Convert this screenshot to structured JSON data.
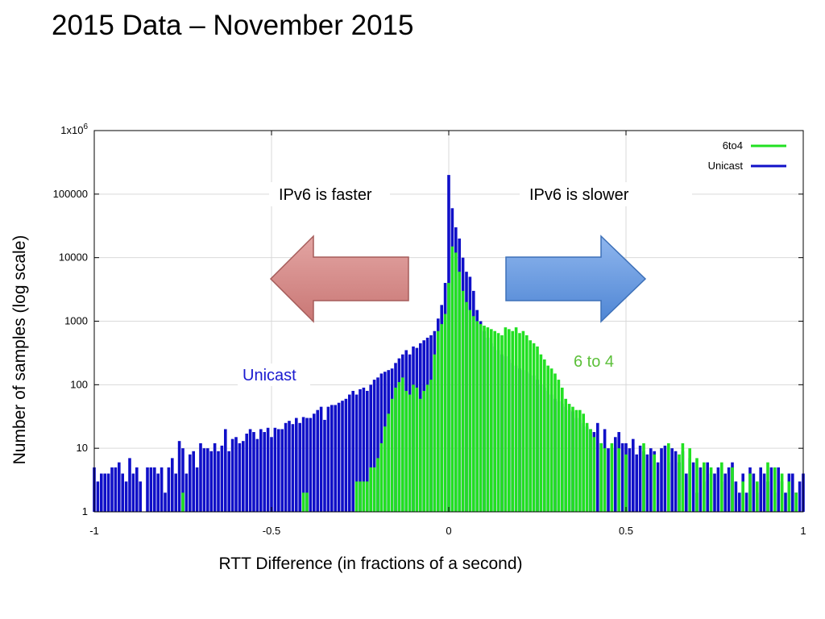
{
  "slide": {
    "title": "2015 Data – November 2015"
  },
  "colors": {
    "unicast": "#1010c8",
    "6to4": "#22e022",
    "grid": "#d9d9d9",
    "left_arrow": "#d48c8a",
    "right_arrow": "#6a9ee0"
  },
  "chart_data": {
    "type": "bar",
    "xlabel": "RTT Difference (in fractions of a second)",
    "ylabel": "Number of samples (log scale)",
    "xlim": [
      -1,
      1
    ],
    "ylim": [
      1,
      1000000
    ],
    "yscale": "log",
    "grid": true,
    "legend_placement": "top-right",
    "x_ticks": [
      "-1",
      "-0.5",
      "0",
      "0.5",
      "1"
    ],
    "y_ticks": [
      {
        "value": 1,
        "base": "1"
      },
      {
        "value": 10,
        "base": "10"
      },
      {
        "value": 100,
        "base": "100"
      },
      {
        "value": 1000,
        "base": "1000"
      },
      {
        "value": 10000,
        "base": "10000"
      },
      {
        "value": 100000,
        "base": "100000"
      },
      {
        "value": 1000000,
        "base": "1x10",
        "sup": "6"
      }
    ],
    "annotations": [
      {
        "text": "IPv6 is faster"
      },
      {
        "text": "IPv6 is slower"
      },
      {
        "text": "Unicast"
      },
      {
        "text": "6 to 4"
      }
    ],
    "series": [
      {
        "name": "6to4",
        "x_step": 0.01,
        "points": [
          [
            -0.75,
            2
          ],
          [
            -0.41,
            2
          ],
          [
            -0.4,
            2
          ],
          [
            -0.26,
            3
          ],
          [
            -0.25,
            3
          ],
          [
            -0.24,
            3
          ],
          [
            -0.23,
            3
          ],
          [
            -0.22,
            5
          ],
          [
            -0.21,
            5
          ],
          [
            -0.2,
            7
          ],
          [
            -0.19,
            12
          ],
          [
            -0.18,
            22
          ],
          [
            -0.17,
            35
          ],
          [
            -0.16,
            60
          ],
          [
            -0.15,
            90
          ],
          [
            -0.14,
            110
          ],
          [
            -0.13,
            130
          ],
          [
            -0.12,
            80
          ],
          [
            -0.11,
            70
          ],
          [
            -0.1,
            100
          ],
          [
            -0.09,
            90
          ],
          [
            -0.08,
            60
          ],
          [
            -0.07,
            80
          ],
          [
            -0.06,
            100
          ],
          [
            -0.05,
            120
          ],
          [
            -0.04,
            300
          ],
          [
            -0.03,
            700
          ],
          [
            -0.02,
            900
          ],
          [
            -0.01,
            1300
          ],
          [
            0.0,
            4000
          ],
          [
            0.01,
            15000
          ],
          [
            0.02,
            12000
          ],
          [
            0.03,
            6000
          ],
          [
            0.04,
            3000
          ],
          [
            0.05,
            2000
          ],
          [
            0.06,
            1500
          ],
          [
            0.07,
            1200
          ],
          [
            0.08,
            1000
          ],
          [
            0.09,
            900
          ],
          [
            0.1,
            850
          ],
          [
            0.11,
            800
          ],
          [
            0.12,
            750
          ],
          [
            0.13,
            700
          ],
          [
            0.14,
            650
          ],
          [
            0.15,
            600
          ],
          [
            0.16,
            800
          ],
          [
            0.17,
            750
          ],
          [
            0.18,
            700
          ],
          [
            0.19,
            800
          ],
          [
            0.2,
            650
          ],
          [
            0.21,
            700
          ],
          [
            0.22,
            600
          ],
          [
            0.23,
            500
          ],
          [
            0.24,
            450
          ],
          [
            0.25,
            400
          ],
          [
            0.26,
            300
          ],
          [
            0.27,
            250
          ],
          [
            0.28,
            200
          ],
          [
            0.29,
            180
          ],
          [
            0.3,
            150
          ],
          [
            0.31,
            120
          ],
          [
            0.32,
            90
          ],
          [
            0.33,
            60
          ],
          [
            0.34,
            50
          ],
          [
            0.35,
            45
          ],
          [
            0.36,
            40
          ],
          [
            0.37,
            40
          ],
          [
            0.38,
            35
          ],
          [
            0.39,
            25
          ],
          [
            0.4,
            20
          ],
          [
            0.41,
            15
          ],
          [
            0.43,
            12
          ],
          [
            0.44,
            10
          ],
          [
            0.46,
            12
          ],
          [
            0.48,
            10
          ],
          [
            0.5,
            8
          ],
          [
            0.55,
            12
          ],
          [
            0.58,
            8
          ],
          [
            0.62,
            12
          ],
          [
            0.65,
            8
          ],
          [
            0.66,
            12
          ],
          [
            0.68,
            10
          ],
          [
            0.7,
            7
          ],
          [
            0.72,
            6
          ],
          [
            0.74,
            5
          ],
          [
            0.77,
            6
          ],
          [
            0.8,
            5
          ],
          [
            0.83,
            3
          ],
          [
            0.85,
            4
          ],
          [
            0.87,
            3
          ],
          [
            0.9,
            6
          ],
          [
            0.92,
            5
          ],
          [
            0.94,
            4
          ],
          [
            0.96,
            3
          ],
          [
            0.98,
            2
          ]
        ]
      },
      {
        "name": "Unicast",
        "x_step": 0.01,
        "points": [
          [
            -1.0,
            5
          ],
          [
            -0.99,
            3
          ],
          [
            -0.98,
            4
          ],
          [
            -0.97,
            4
          ],
          [
            -0.96,
            4
          ],
          [
            -0.95,
            5
          ],
          [
            -0.94,
            5
          ],
          [
            -0.93,
            6
          ],
          [
            -0.92,
            4
          ],
          [
            -0.91,
            3
          ],
          [
            -0.9,
            7
          ],
          [
            -0.89,
            4
          ],
          [
            -0.88,
            5
          ],
          [
            -0.87,
            3
          ],
          [
            -0.86,
            1
          ],
          [
            -0.85,
            5
          ],
          [
            -0.84,
            5
          ],
          [
            -0.83,
            5
          ],
          [
            -0.82,
            4
          ],
          [
            -0.81,
            5
          ],
          [
            -0.8,
            2
          ],
          [
            -0.79,
            5
          ],
          [
            -0.78,
            7
          ],
          [
            -0.77,
            4
          ],
          [
            -0.76,
            13
          ],
          [
            -0.75,
            10
          ],
          [
            -0.74,
            4
          ],
          [
            -0.73,
            8
          ],
          [
            -0.72,
            9
          ],
          [
            -0.71,
            5
          ],
          [
            -0.7,
            12
          ],
          [
            -0.69,
            10
          ],
          [
            -0.68,
            10
          ],
          [
            -0.67,
            9
          ],
          [
            -0.66,
            12
          ],
          [
            -0.65,
            9
          ],
          [
            -0.64,
            11
          ],
          [
            -0.63,
            20
          ],
          [
            -0.62,
            9
          ],
          [
            -0.61,
            14
          ],
          [
            -0.6,
            15
          ],
          [
            -0.59,
            12
          ],
          [
            -0.58,
            13
          ],
          [
            -0.57,
            17
          ],
          [
            -0.56,
            20
          ],
          [
            -0.55,
            18
          ],
          [
            -0.54,
            14
          ],
          [
            -0.53,
            20
          ],
          [
            -0.52,
            18
          ],
          [
            -0.51,
            21
          ],
          [
            -0.5,
            15
          ],
          [
            -0.49,
            21
          ],
          [
            -0.48,
            20
          ],
          [
            -0.47,
            20
          ],
          [
            -0.46,
            25
          ],
          [
            -0.45,
            27
          ],
          [
            -0.44,
            24
          ],
          [
            -0.43,
            30
          ],
          [
            -0.42,
            25
          ],
          [
            -0.41,
            31
          ],
          [
            -0.4,
            30
          ],
          [
            -0.39,
            30
          ],
          [
            -0.38,
            35
          ],
          [
            -0.37,
            40
          ],
          [
            -0.36,
            45
          ],
          [
            -0.35,
            28
          ],
          [
            -0.34,
            45
          ],
          [
            -0.33,
            48
          ],
          [
            -0.32,
            48
          ],
          [
            -0.31,
            52
          ],
          [
            -0.3,
            56
          ],
          [
            -0.29,
            60
          ],
          [
            -0.28,
            70
          ],
          [
            -0.27,
            80
          ],
          [
            -0.26,
            70
          ],
          [
            -0.25,
            85
          ],
          [
            -0.24,
            90
          ],
          [
            -0.23,
            80
          ],
          [
            -0.22,
            100
          ],
          [
            -0.21,
            120
          ],
          [
            -0.2,
            130
          ],
          [
            -0.19,
            150
          ],
          [
            -0.18,
            160
          ],
          [
            -0.17,
            170
          ],
          [
            -0.16,
            180
          ],
          [
            -0.15,
            220
          ],
          [
            -0.14,
            260
          ],
          [
            -0.13,
            300
          ],
          [
            -0.12,
            350
          ],
          [
            -0.11,
            300
          ],
          [
            -0.1,
            400
          ],
          [
            -0.09,
            380
          ],
          [
            -0.08,
            450
          ],
          [
            -0.07,
            500
          ],
          [
            -0.06,
            550
          ],
          [
            -0.05,
            600
          ],
          [
            -0.04,
            700
          ],
          [
            -0.03,
            1100
          ],
          [
            -0.02,
            1800
          ],
          [
            -0.01,
            4000
          ],
          [
            0.0,
            200000
          ],
          [
            0.01,
            60000
          ],
          [
            0.02,
            30000
          ],
          [
            0.03,
            20000
          ],
          [
            0.04,
            10000
          ],
          [
            0.05,
            6000
          ],
          [
            0.06,
            5000
          ],
          [
            0.07,
            3000
          ],
          [
            0.08,
            1500
          ],
          [
            0.09,
            1000
          ],
          [
            0.1,
            700
          ],
          [
            0.11,
            550
          ],
          [
            0.12,
            450
          ],
          [
            0.13,
            400
          ],
          [
            0.14,
            350
          ],
          [
            0.15,
            300
          ],
          [
            0.16,
            280
          ],
          [
            0.17,
            250
          ],
          [
            0.18,
            220
          ],
          [
            0.19,
            200
          ],
          [
            0.2,
            180
          ],
          [
            0.21,
            170
          ],
          [
            0.22,
            160
          ],
          [
            0.23,
            150
          ],
          [
            0.24,
            140
          ],
          [
            0.25,
            120
          ],
          [
            0.26,
            100
          ],
          [
            0.27,
            90
          ],
          [
            0.28,
            80
          ],
          [
            0.29,
            70
          ],
          [
            0.3,
            60
          ],
          [
            0.31,
            55
          ],
          [
            0.32,
            50
          ],
          [
            0.33,
            45
          ],
          [
            0.34,
            40
          ],
          [
            0.35,
            38
          ],
          [
            0.36,
            30
          ],
          [
            0.37,
            28
          ],
          [
            0.38,
            25
          ],
          [
            0.39,
            22
          ],
          [
            0.4,
            20
          ],
          [
            0.41,
            18
          ],
          [
            0.42,
            25
          ],
          [
            0.43,
            12
          ],
          [
            0.44,
            20
          ],
          [
            0.45,
            10
          ],
          [
            0.46,
            10
          ],
          [
            0.47,
            15
          ],
          [
            0.48,
            18
          ],
          [
            0.49,
            12
          ],
          [
            0.5,
            12
          ],
          [
            0.51,
            10
          ],
          [
            0.52,
            14
          ],
          [
            0.53,
            8
          ],
          [
            0.54,
            11
          ],
          [
            0.55,
            9
          ],
          [
            0.56,
            8
          ],
          [
            0.57,
            10
          ],
          [
            0.58,
            9
          ],
          [
            0.59,
            6
          ],
          [
            0.6,
            10
          ],
          [
            0.61,
            11
          ],
          [
            0.62,
            6
          ],
          [
            0.63,
            10
          ],
          [
            0.64,
            9
          ],
          [
            0.65,
            6
          ],
          [
            0.66,
            9
          ],
          [
            0.67,
            4
          ],
          [
            0.68,
            7
          ],
          [
            0.69,
            6
          ],
          [
            0.7,
            2
          ],
          [
            0.71,
            5
          ],
          [
            0.72,
            3
          ],
          [
            0.73,
            6
          ],
          [
            0.74,
            4
          ],
          [
            0.75,
            4
          ],
          [
            0.76,
            5
          ],
          [
            0.77,
            3
          ],
          [
            0.78,
            4
          ],
          [
            0.79,
            5
          ],
          [
            0.8,
            6
          ],
          [
            0.81,
            3
          ],
          [
            0.82,
            2
          ],
          [
            0.83,
            4
          ],
          [
            0.84,
            2
          ],
          [
            0.85,
            5
          ],
          [
            0.86,
            4
          ],
          [
            0.87,
            2
          ],
          [
            0.88,
            5
          ],
          [
            0.89,
            4
          ],
          [
            0.9,
            3
          ],
          [
            0.91,
            5
          ],
          [
            0.92,
            2
          ],
          [
            0.93,
            5
          ],
          [
            0.94,
            3
          ],
          [
            0.95,
            2
          ],
          [
            0.96,
            4
          ],
          [
            0.97,
            4
          ],
          [
            0.98,
            2
          ],
          [
            0.99,
            3
          ],
          [
            1.0,
            4
          ]
        ]
      }
    ]
  }
}
